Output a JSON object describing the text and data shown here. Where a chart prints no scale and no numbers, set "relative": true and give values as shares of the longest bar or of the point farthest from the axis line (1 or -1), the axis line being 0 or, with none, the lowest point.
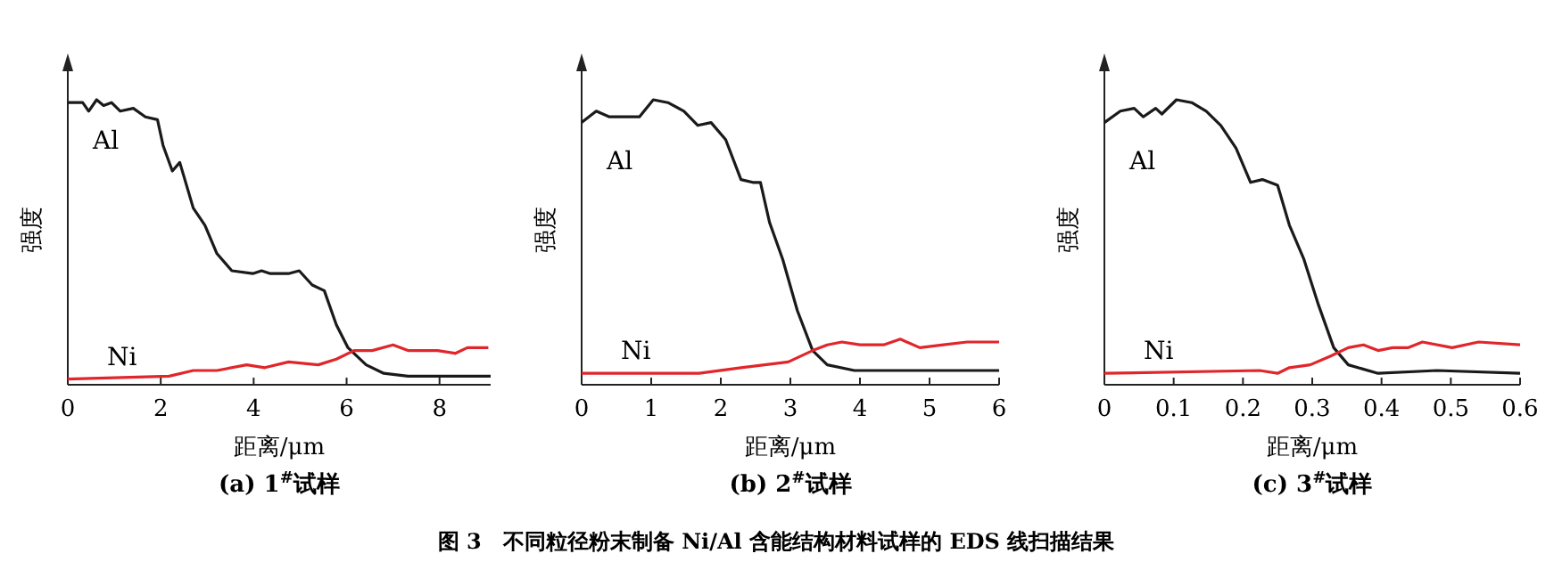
{
  "chart_data": [
    {
      "type": "line",
      "title": "(a) 1$^{#}$试样",
      "xlabel": "距离/μm",
      "ylabel": "强度",
      "relative": true,
      "xlim": [
        0,
        9.1
      ],
      "xticks": [
        0,
        2,
        4,
        6,
        8
      ],
      "grid": false,
      "annotations": [
        "图 3　不同粒径粉末制备 Ni/Al 含能结构材料试样的 EDS 线扫描结果"
      ],
      "series": [
        {
          "name": "Al",
          "color": "#1a1a1a",
          "x": [
            0,
            0.32,
            0.45,
            0.62,
            0.77,
            0.94,
            1.13,
            1.41,
            1.67,
            1.93,
            2.05,
            2.25,
            2.41,
            2.7,
            2.95,
            3.21,
            3.53,
            3.98,
            4.17,
            4.36,
            4.75,
            4.98,
            5.26,
            5.52,
            5.78,
            6.03,
            6.42,
            6.8,
            7.32,
            7.96,
            8.34,
            9.1
          ],
          "values": [
            0.99,
            0.99,
            0.96,
            1.0,
            0.98,
            0.99,
            0.96,
            0.97,
            0.94,
            0.93,
            0.84,
            0.75,
            0.78,
            0.62,
            0.56,
            0.46,
            0.4,
            0.39,
            0.4,
            0.39,
            0.39,
            0.4,
            0.35,
            0.33,
            0.21,
            0.13,
            0.07,
            0.04,
            0.03,
            0.03,
            0.03,
            0.03
          ]
        },
        {
          "name": "Ni",
          "color": "#e0262b",
          "x": [
            0,
            2.18,
            2.7,
            3.21,
            3.85,
            4.24,
            4.75,
            5.39,
            5.78,
            6.16,
            6.55,
            7.0,
            7.32,
            7.96,
            8.34,
            8.6,
            9.05
          ],
          "values": [
            0.02,
            0.03,
            0.05,
            0.05,
            0.07,
            0.06,
            0.08,
            0.07,
            0.09,
            0.12,
            0.12,
            0.14,
            0.12,
            0.12,
            0.11,
            0.13,
            0.13
          ]
        }
      ]
    },
    {
      "type": "line",
      "title": "(b) 2$^{#}$试样",
      "xlabel": "距离/μm",
      "ylabel": "强度",
      "relative": true,
      "xlim": [
        0,
        6
      ],
      "xticks": [
        0,
        1,
        2,
        3,
        4,
        5,
        6
      ],
      "grid": false,
      "series": [
        {
          "name": "Al",
          "color": "#1a1a1a",
          "x": [
            0,
            0.21,
            0.4,
            0.83,
            1.03,
            1.24,
            1.47,
            1.67,
            1.86,
            2.07,
            2.29,
            2.46,
            2.57,
            2.7,
            2.89,
            3.1,
            3.32,
            3.53,
            3.92,
            4.86,
            6
          ],
          "values": [
            0.92,
            0.96,
            0.94,
            0.94,
            1.0,
            0.99,
            0.96,
            0.91,
            0.92,
            0.86,
            0.72,
            0.71,
            0.71,
            0.57,
            0.44,
            0.26,
            0.12,
            0.07,
            0.05,
            0.05,
            0.05
          ]
        },
        {
          "name": "Ni",
          "color": "#e0262b",
          "x": [
            0,
            1.69,
            2.29,
            2.63,
            2.97,
            3.32,
            3.53,
            3.74,
            4.0,
            4.34,
            4.58,
            4.86,
            5.2,
            5.54,
            6
          ],
          "values": [
            0.04,
            0.04,
            0.06,
            0.07,
            0.08,
            0.12,
            0.14,
            0.15,
            0.14,
            0.14,
            0.16,
            0.13,
            0.14,
            0.15,
            0.15
          ]
        }
      ]
    },
    {
      "type": "line",
      "title": "(c) 3$^{#}$试样",
      "xlabel": "距离/μm",
      "ylabel": "强度",
      "relative": true,
      "xlim": [
        0,
        0.6
      ],
      "xticks": [
        0,
        0.1,
        0.2,
        0.3,
        0.4,
        0.5,
        0.6
      ],
      "grid": false,
      "series": [
        {
          "name": "Al",
          "color": "#1a1a1a",
          "x": [
            0,
            0.023,
            0.043,
            0.056,
            0.074,
            0.083,
            0.104,
            0.126,
            0.147,
            0.168,
            0.19,
            0.211,
            0.228,
            0.25,
            0.267,
            0.288,
            0.309,
            0.331,
            0.352,
            0.395,
            0.48,
            0.6
          ],
          "values": [
            0.92,
            0.96,
            0.97,
            0.94,
            0.97,
            0.95,
            1.0,
            0.99,
            0.96,
            0.91,
            0.83,
            0.71,
            0.72,
            0.7,
            0.56,
            0.44,
            0.28,
            0.13,
            0.07,
            0.04,
            0.05,
            0.04
          ]
        },
        {
          "name": "Ni",
          "color": "#e0262b",
          "x": [
            0,
            0.224,
            0.25,
            0.267,
            0.297,
            0.326,
            0.352,
            0.374,
            0.395,
            0.416,
            0.438,
            0.459,
            0.502,
            0.54,
            0.6
          ],
          "values": [
            0.04,
            0.05,
            0.04,
            0.06,
            0.07,
            0.1,
            0.13,
            0.14,
            0.12,
            0.13,
            0.13,
            0.15,
            0.13,
            0.15,
            0.14
          ]
        }
      ]
    }
  ]
}
